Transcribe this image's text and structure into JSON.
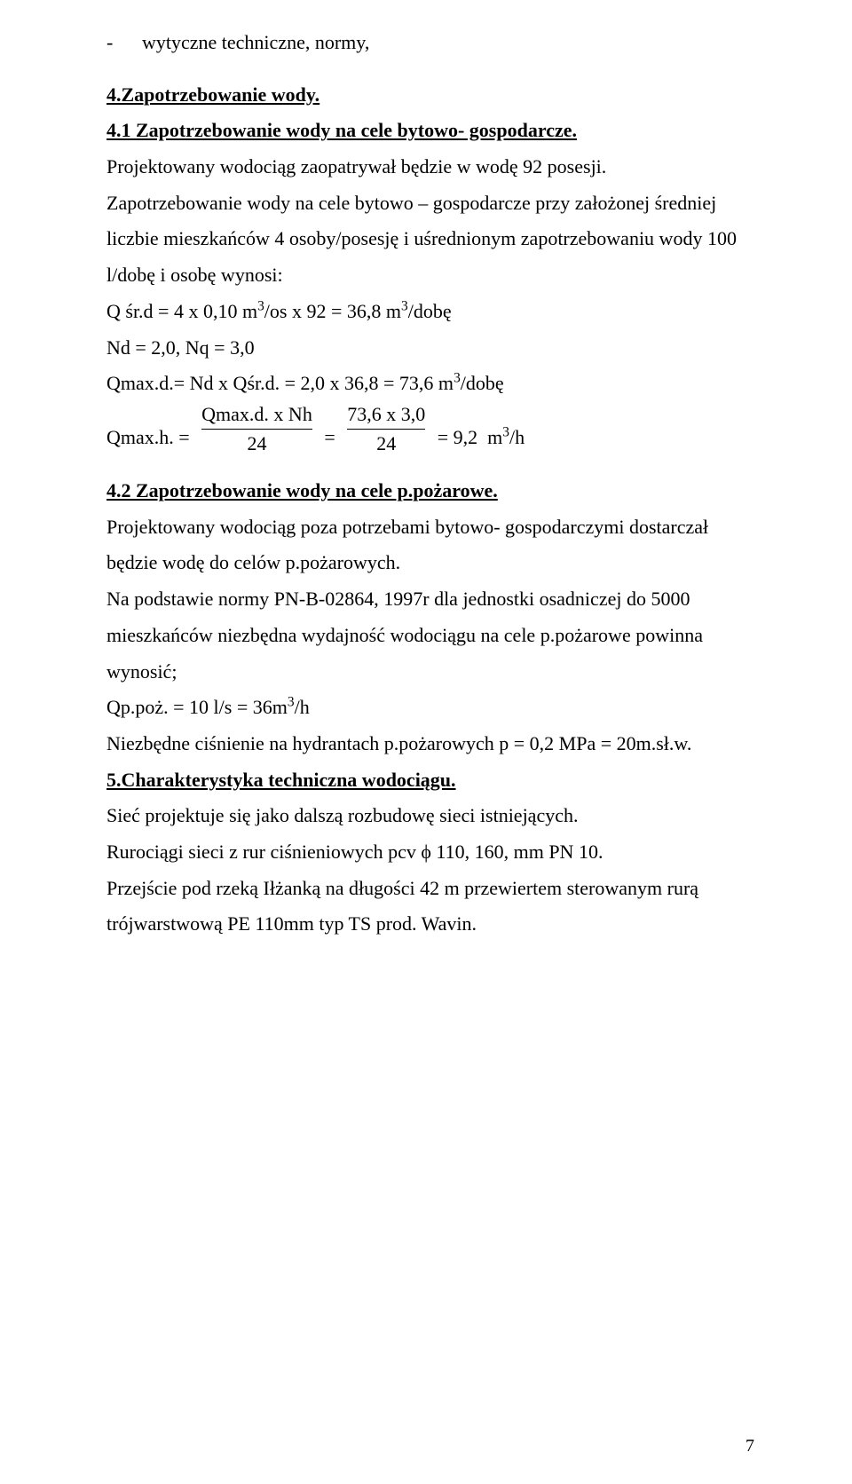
{
  "bullet1": "wytyczne techniczne, normy,",
  "h4": "4.Zapotrzebowanie wody.",
  "h41": "4.1 Zapotrzebowanie wody na cele bytowo- gospodarcze.",
  "p1": "Projektowany wodociąg zaopatrywał będzie w wodę 92 posesji.",
  "p2": "Zapotrzebowanie wody na cele bytowo – gospodarcze przy założonej średniej liczbie mieszkańców 4 osoby/posesję i uśrednionym zapotrzebowaniu wody 100  l/dobę i osobę wynosi:",
  "eq1_a": " Q śr.d = 4 x 0,10 m",
  "eq1_b": "/os x  92 = 36,8 m",
  "eq1_c": "/dobę",
  "eq2": "Nd = 2,0, Nq = 3,0",
  "eq3_a": "Qmax.d.= Nd x Qśr.d. = 2,0 x 36,8  = 73,6  m",
  "eq3_b": "/dobę",
  "frac_prefix": "Qmax.h. = ",
  "frac1_num": "Qmax.d. x Nh",
  "frac1_den": "24",
  "frac_mid": " = ",
  "frac2_num": "73,6 x 3,0",
  "frac2_den": "24",
  "frac_suffix_a": " = 9,2  m",
  "frac_suffix_b": "/h",
  "h42": "4.2 Zapotrzebowanie wody na cele p.pożarowe.",
  "p3": "Projektowany wodociąg poza potrzebami bytowo- gospodarczymi dostarczał będzie wodę do celów p.pożarowych.",
  "p4": "Na podstawie normy PN-B-02864, 1997r dla jednostki osadniczej do 5000 mieszkańców niezbędna wydajność wodociągu na cele p.pożarowe powinna wynosić;",
  "eq4_a": "Qp.poż. = 10 l/s = 36m",
  "eq4_b": "/h",
  "p5": "Niezbędne ciśnienie na hydrantach p.pożarowych p = 0,2 MPa = 20m.sł.w.",
  "h5": "5.Charakterystyka techniczna wodociągu.",
  "p6": "Sieć  projektuje się jako dalszą rozbudowę  sieci istniejących.",
  "p7": "Rurociągi sieci z rur ciśnieniowych pcv ϕ 110,  160, mm  PN 10.",
  "p8": "Przejście pod rzeką Iłżanką na długości 42 m przewiertem sterowanym rurą trójwarstwową PE 110mm typ TS prod.  Wavin.",
  "sup3": "3",
  "dash": "-",
  "pagenum": "7"
}
